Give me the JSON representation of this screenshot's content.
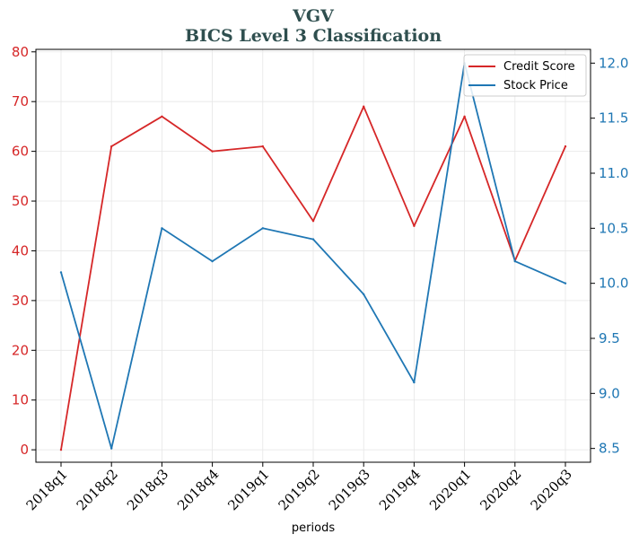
{
  "chart_data": {
    "type": "line",
    "title": "VGV",
    "subtitle": "BICS Level 3 Classification",
    "xlabel": "periods",
    "ylabel": "",
    "categories": [
      "2018q1",
      "2018q2",
      "2018q3",
      "2018q4",
      "2019q1",
      "2019q2",
      "2019q3",
      "2019q4",
      "2020q1",
      "2020q2",
      "2020q3"
    ],
    "series": [
      {
        "name": "Credit Score",
        "axis": "left",
        "color": "#d62728",
        "values": [
          0,
          61,
          67,
          60,
          61,
          46,
          69,
          45,
          67,
          38,
          61
        ]
      },
      {
        "name": "Stock Price",
        "axis": "right",
        "color": "#1f77b4",
        "values": [
          10.1,
          8.5,
          10.5,
          10.2,
          10.5,
          10.4,
          9.9,
          9.1,
          12.0,
          10.2,
          10.0
        ]
      }
    ],
    "ylim_left": [
      -2.5,
      80.5
    ],
    "ylim_right": [
      8.375,
      12.125
    ],
    "yticks_left": [
      "0",
      "10",
      "20",
      "30",
      "40",
      "50",
      "60",
      "70",
      "80"
    ],
    "yticks_right": [
      "8.5",
      "9.0",
      "9.5",
      "10.0",
      "10.5",
      "11.0",
      "11.5",
      "12.0"
    ],
    "grid": true,
    "legend_position": "top-right"
  }
}
